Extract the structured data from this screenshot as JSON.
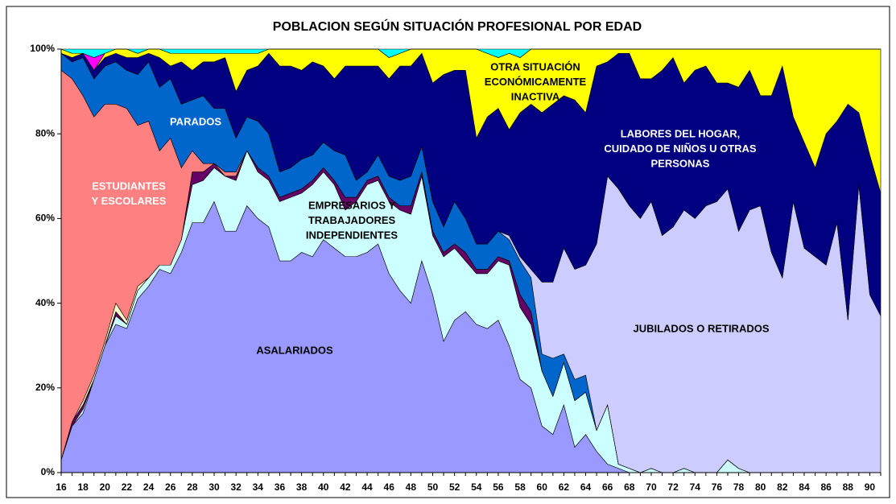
{
  "chart_data": {
    "type": "stacked_area",
    "title": "POBLACION  SEGÚN SITUACIÓN PROFESIONAL POR EDAD",
    "categories": [
      16,
      null,
      18,
      null,
      20,
      null,
      22,
      null,
      24,
      null,
      26,
      null,
      28,
      null,
      30,
      null,
      32,
      null,
      34,
      null,
      36,
      null,
      38,
      null,
      40,
      null,
      42,
      null,
      44,
      null,
      46,
      null,
      48,
      null,
      50,
      null,
      52,
      null,
      54,
      null,
      56,
      null,
      58,
      null,
      60,
      null,
      62,
      null,
      64,
      null,
      66,
      null,
      68,
      null,
      70,
      null,
      72,
      null,
      74,
      null,
      76,
      null,
      78,
      null,
      80,
      null,
      82,
      null,
      84,
      null,
      86,
      null,
      88,
      null,
      90,
      null
    ],
    "ylim": [
      0,
      100
    ],
    "yticks": [
      {
        "value": 0,
        "label": "0%"
      },
      {
        "value": 20,
        "label": "20%"
      },
      {
        "value": 40,
        "label": "40%"
      },
      {
        "value": 60,
        "label": "60%"
      },
      {
        "value": 80,
        "label": "80%"
      },
      {
        "value": 100,
        "label": "100%"
      }
    ],
    "series": [
      {
        "name": [
          "ASALARIADOS"
        ],
        "color": "#9999ff",
        "values": [
          3,
          11,
          14,
          22,
          30,
          35,
          34,
          41,
          44,
          48,
          47,
          52,
          59,
          59,
          64,
          57,
          57,
          63,
          60,
          58,
          50,
          50,
          52,
          51,
          55,
          53,
          51,
          51,
          52,
          54,
          47,
          43,
          40,
          50,
          42,
          31,
          36,
          38,
          35,
          34,
          36,
          30,
          22,
          20,
          11,
          9,
          16,
          6,
          9,
          5,
          2,
          1,
          0,
          0,
          0,
          0,
          0,
          0,
          0,
          0,
          0,
          0,
          0,
          0,
          0,
          0,
          0,
          0,
          0,
          0,
          0,
          0,
          0,
          0,
          0,
          0
        ]
      },
      {
        "name": [
          "EMPRESARIOS Y",
          "TRABAJADORES",
          "INDEPENDIENTES"
        ],
        "color": "#ccffff",
        "values": [
          0,
          0,
          1,
          0,
          0,
          2,
          1,
          2,
          2,
          1,
          2,
          3,
          9,
          10,
          8,
          13,
          12,
          13,
          11,
          11,
          14,
          15,
          14,
          17,
          16,
          15,
          11,
          13,
          16,
          15,
          17,
          19,
          21,
          20,
          14,
          20,
          17,
          12,
          12,
          13,
          14,
          19,
          17,
          15,
          13,
          9,
          10,
          11,
          10,
          5,
          14,
          1,
          1,
          0,
          1,
          0,
          0,
          1,
          0,
          0,
          0,
          3,
          1,
          0,
          0,
          0,
          0,
          0,
          0,
          0,
          0,
          0,
          0,
          0,
          0,
          0
        ]
      },
      {
        "color": "#660066",
        "values": [
          0,
          1,
          1,
          0,
          0,
          1,
          0,
          0,
          0,
          0,
          0,
          0,
          3,
          2,
          1,
          0,
          1,
          0,
          1,
          1,
          1,
          1,
          1,
          1,
          1,
          1,
          3,
          1,
          1,
          1,
          1,
          1,
          2,
          1,
          1,
          1,
          1,
          2,
          1,
          1,
          1,
          1,
          3,
          3,
          0,
          0,
          0,
          0,
          0,
          0,
          0,
          0,
          0,
          0,
          0,
          0,
          0,
          0,
          0,
          0,
          0,
          0,
          0,
          0,
          0,
          0,
          0,
          0,
          0,
          0,
          0,
          0,
          0,
          0,
          0,
          0
        ]
      },
      {
        "color": "#ffffcc",
        "values": [
          0,
          0,
          1,
          1,
          1,
          2,
          1,
          1,
          0,
          0,
          0,
          0,
          0,
          0,
          0,
          0,
          0,
          0,
          0,
          0,
          0,
          0,
          0,
          0,
          0,
          0,
          0,
          0,
          0,
          0,
          0,
          0,
          0,
          0,
          0,
          0,
          0,
          0,
          0,
          0,
          0,
          0,
          0,
          0,
          0,
          0,
          0,
          0,
          0,
          0,
          0,
          0,
          0,
          0,
          0,
          0,
          0,
          0,
          0,
          0,
          0,
          0,
          0,
          0,
          0,
          0,
          0,
          0,
          0,
          0,
          0,
          0,
          0,
          0,
          0,
          0
        ]
      },
      {
        "name": [
          "ESTUDIANTES",
          "Y ESCOLARES"
        ],
        "color": "#ff8080",
        "values": [
          92,
          81,
          72,
          61,
          56,
          47,
          50,
          38,
          37,
          27,
          30,
          17,
          5,
          2,
          0,
          1,
          1,
          0,
          0,
          0,
          0,
          0,
          0,
          0,
          0,
          0,
          0,
          0,
          0,
          0,
          0,
          0,
          0,
          0,
          0,
          0,
          0,
          0,
          0,
          0,
          0,
          0,
          0,
          0,
          0,
          0,
          0,
          0,
          0,
          0,
          0,
          0,
          0,
          0,
          0,
          0,
          0,
          0,
          0,
          0,
          0,
          0,
          0,
          0,
          0,
          0,
          0,
          0,
          0,
          0,
          0,
          0,
          0,
          0,
          0,
          0
        ]
      },
      {
        "name": [
          "PARADOS"
        ],
        "color": "#0066cc",
        "values": [
          4,
          4,
          9,
          9,
          9,
          10,
          9,
          12,
          14,
          15,
          14,
          15,
          12,
          16,
          13,
          15,
          8,
          8,
          11,
          10,
          6,
          6,
          7,
          6,
          6,
          7,
          10,
          4,
          2,
          5,
          5,
          6,
          7,
          6,
          7,
          6,
          10,
          8,
          6,
          6,
          6,
          5,
          8,
          8,
          4,
          9,
          2,
          5,
          4,
          0,
          0,
          0,
          0,
          0,
          0,
          0,
          0,
          0,
          0,
          0,
          0,
          0,
          0,
          0,
          0,
          0,
          0,
          0,
          0,
          0,
          0,
          0,
          0,
          0,
          0,
          0
        ]
      },
      {
        "name": [
          "JUBILADOS O RETIRADOS"
        ],
        "color": "#ccccff",
        "values": [
          0,
          0,
          0,
          0,
          0,
          0,
          0,
          0,
          0,
          0,
          0,
          0,
          0,
          0,
          0,
          0,
          0,
          0,
          0,
          0,
          0,
          0,
          0,
          0,
          0,
          0,
          0,
          0,
          0,
          0,
          0,
          0,
          0,
          0,
          0,
          0,
          0,
          0,
          0,
          0,
          0,
          1,
          1,
          2,
          17,
          18,
          25,
          26,
          26,
          44,
          54,
          65,
          62,
          60,
          63,
          56,
          58,
          61,
          60,
          63,
          64,
          64,
          56,
          62,
          63,
          52,
          46,
          64,
          53,
          51,
          49,
          59,
          36,
          68,
          42,
          37
        ]
      },
      {
        "name": [
          "LABORES DEL HOGAR,",
          "CUIDADO DE NIÑOS U OTRAS",
          "PERSONAS"
        ],
        "color": "#000080",
        "values": [
          0,
          1,
          1,
          2,
          2,
          2,
          3,
          4,
          2,
          7,
          3,
          10,
          7,
          8,
          11,
          12,
          11,
          11,
          13,
          19,
          25,
          24,
          21,
          22,
          18,
          17,
          21,
          27,
          25,
          21,
          23,
          27,
          26,
          22,
          28,
          36,
          31,
          35,
          25,
          30,
          29,
          25,
          34,
          39,
          40,
          42,
          36,
          40,
          36,
          42,
          27,
          32,
          36,
          33,
          29,
          39,
          40,
          30,
          35,
          33,
          28,
          25,
          34,
          33,
          26,
          37,
          50,
          20,
          25,
          21,
          31,
          24,
          51,
          17,
          33,
          29
        ]
      },
      {
        "name": [
          "OTRA SITUACIÓN",
          "ECONÓMICAMENTE",
          "INACTIVA"
        ],
        "color": "#ffff00",
        "values": [
          1,
          1,
          0,
          0,
          1,
          1,
          2,
          1,
          1,
          2,
          3,
          2,
          4,
          2,
          2,
          1,
          9,
          4,
          3,
          1,
          4,
          4,
          5,
          3,
          4,
          7,
          4,
          4,
          4,
          4,
          5,
          3,
          4,
          1,
          8,
          6,
          5,
          5,
          21,
          15,
          12,
          18,
          13,
          13,
          15,
          13,
          11,
          12,
          15,
          4,
          3,
          1,
          1,
          7,
          7,
          5,
          2,
          8,
          5,
          4,
          8,
          8,
          9,
          5,
          11,
          11,
          4,
          16,
          22,
          28,
          20,
          17,
          13,
          15,
          25,
          34
        ]
      },
      {
        "color": "#ff00ff",
        "values": [
          0,
          0,
          0,
          3,
          0,
          0,
          0,
          0,
          0,
          0,
          0,
          0,
          0,
          0,
          0,
          0,
          0,
          0,
          0,
          0,
          0,
          0,
          0,
          0,
          0,
          0,
          0,
          0,
          0,
          0,
          0,
          0,
          0,
          0,
          0,
          0,
          0,
          0,
          0,
          0,
          0,
          0,
          0,
          0,
          0,
          0,
          0,
          0,
          0,
          0,
          0,
          0,
          0,
          0,
          0,
          0,
          0,
          0,
          0,
          0,
          0,
          0,
          0,
          0,
          0,
          0,
          0,
          0,
          0,
          0,
          0,
          0,
          0,
          0,
          0,
          0
        ]
      },
      {
        "color": "#00ffff",
        "values": [
          0,
          1,
          1,
          2,
          1,
          0,
          0,
          1,
          0,
          0,
          1,
          1,
          1,
          1,
          1,
          1,
          1,
          1,
          1,
          0,
          0,
          0,
          0,
          0,
          0,
          0,
          0,
          0,
          0,
          0,
          2,
          1,
          0,
          0,
          0,
          0,
          0,
          0,
          0,
          1,
          2,
          1,
          2,
          0,
          0,
          0,
          0,
          0,
          0,
          0,
          0,
          0,
          0,
          0,
          0,
          0,
          0,
          0,
          0,
          0,
          0,
          0,
          0,
          0,
          0,
          0,
          0,
          0,
          0,
          0,
          0,
          0,
          0,
          0,
          0,
          0
        ]
      }
    ]
  }
}
